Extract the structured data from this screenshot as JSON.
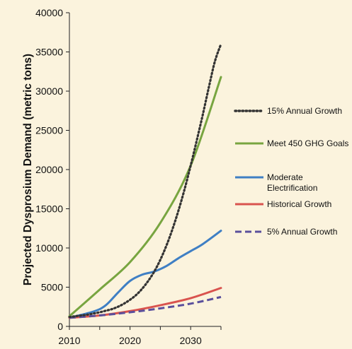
{
  "chart_data": {
    "type": "line",
    "ylabel": "Projected Dysprosium Demand (metric tons)",
    "xlabel": "",
    "xlim": [
      2010,
      2035
    ],
    "ylim": [
      0,
      40000
    ],
    "x_ticks": [
      "2010",
      "2020",
      "2030"
    ],
    "y_ticks": [
      "0",
      "5000",
      "10000",
      "15000",
      "20000",
      "25000",
      "30000",
      "35000",
      "40000"
    ],
    "grid": false,
    "legend_position": "right",
    "series": [
      {
        "name": "15% Annual Growth",
        "color": "#333333",
        "style": "dotted",
        "x": [
          2010,
          2011,
          2012,
          2013,
          2014,
          2015,
          2016,
          2017,
          2018,
          2019,
          2020,
          2021,
          2022,
          2023,
          2024,
          2025,
          2026,
          2027,
          2028,
          2029,
          2030,
          2031,
          2032,
          2033,
          2034,
          2035
        ],
        "y": [
          1200,
          1300,
          1400,
          1500,
          1650,
          1800,
          2000,
          2200,
          2500,
          2900,
          3400,
          4000,
          4800,
          5800,
          7000,
          8500,
          10300,
          12400,
          14800,
          17500,
          20500,
          23700,
          27000,
          30500,
          33800,
          36000
        ]
      },
      {
        "name": "Meet 450 GHG Goals",
        "color": "#78a540",
        "style": "solid",
        "x": [
          2010,
          2015,
          2020,
          2025,
          2030,
          2035
        ],
        "y": [
          1300,
          4700,
          8200,
          13200,
          20500,
          31800
        ]
      },
      {
        "name": "Moderate\nElectrification",
        "label_lines": [
          "Moderate",
          "Electrification"
        ],
        "color": "#3f7fc4",
        "style": "solid",
        "x": [
          2010,
          2014,
          2016,
          2018,
          2020,
          2022,
          2024,
          2026,
          2028,
          2030,
          2032,
          2035
        ],
        "y": [
          1100,
          1900,
          2700,
          4300,
          5800,
          6600,
          7000,
          7700,
          8700,
          9600,
          10500,
          12200
        ]
      },
      {
        "name": "Historical Growth",
        "color": "#d9534e",
        "style": "solid",
        "x": [
          2010,
          2015,
          2020,
          2025,
          2030,
          2035
        ],
        "y": [
          1100,
          1400,
          1950,
          2700,
          3600,
          4900
        ]
      },
      {
        "name": "5% Annual Growth",
        "color": "#5a4f9c",
        "style": "dashed",
        "x": [
          2010,
          2015,
          2020,
          2025,
          2030,
          2035
        ],
        "y": [
          1100,
          1400,
          1800,
          2300,
          2900,
          3750
        ]
      }
    ]
  }
}
